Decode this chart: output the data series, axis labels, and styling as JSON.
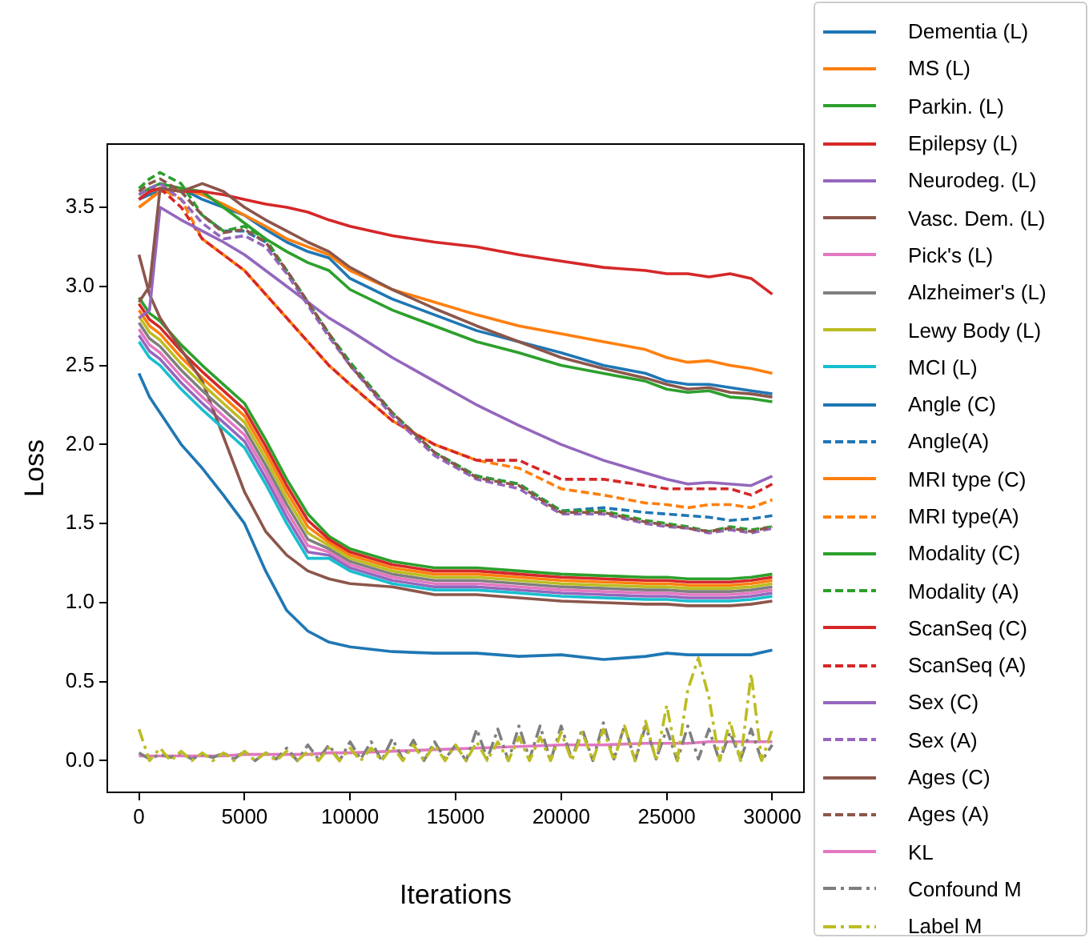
{
  "chart_data": {
    "type": "line",
    "xlabel": "Iterations",
    "ylabel": "Loss",
    "legend": "right",
    "grid": false,
    "xlim": [
      -1500,
      31500
    ],
    "ylim": [
      -0.2,
      3.9
    ],
    "xticks": [
      0,
      5000,
      10000,
      15000,
      20000,
      25000,
      30000
    ],
    "yticks": [
      {
        "value": 0,
        "label": "0.0"
      },
      {
        "value": 0.5,
        "label": "0.5"
      },
      {
        "value": 1,
        "label": "1.0"
      },
      {
        "value": 1.5,
        "label": "1.5"
      },
      {
        "value": 2,
        "label": "2.0"
      },
      {
        "value": 2.5,
        "label": "2.5"
      },
      {
        "value": 3,
        "label": "3.0"
      },
      {
        "value": 3.5,
        "label": "3.5"
      }
    ],
    "x": [
      0,
      500,
      1000,
      2000,
      3000,
      4000,
      5000,
      6000,
      7000,
      8000,
      9000,
      10000,
      12000,
      14000,
      16000,
      18000,
      20000,
      22000,
      24000,
      25000,
      26000,
      27000,
      28000,
      29000,
      30000
    ],
    "series": [
      {
        "name": "Dementia (L)",
        "color": "#1f77b4",
        "line_style": "solid",
        "values": [
          2.45,
          2.3,
          2.2,
          2.0,
          1.85,
          1.68,
          1.5,
          1.2,
          0.95,
          0.82,
          0.75,
          0.72,
          0.69,
          0.68,
          0.68,
          0.66,
          0.67,
          0.64,
          0.66,
          0.68,
          0.67,
          0.67,
          0.67,
          0.67,
          0.7
        ]
      },
      {
        "name": "MS (L)",
        "color": "#ff7f0e",
        "line_style": "solid",
        "values": [
          2.85,
          2.75,
          2.7,
          2.55,
          2.42,
          2.3,
          2.18,
          1.95,
          1.7,
          1.48,
          1.38,
          1.3,
          1.22,
          1.18,
          1.18,
          1.16,
          1.14,
          1.13,
          1.12,
          1.12,
          1.11,
          1.11,
          1.11,
          1.12,
          1.14
        ]
      },
      {
        "name": "Parkin. (L)",
        "color": "#2ca02c",
        "line_style": "solid",
        "values": [
          2.93,
          2.83,
          2.78,
          2.63,
          2.5,
          2.38,
          2.26,
          2.03,
          1.78,
          1.56,
          1.42,
          1.34,
          1.26,
          1.22,
          1.22,
          1.2,
          1.18,
          1.17,
          1.16,
          1.16,
          1.15,
          1.15,
          1.15,
          1.16,
          1.18
        ]
      },
      {
        "name": "Epilepsy (L)",
        "color": "#d62728",
        "line_style": "solid",
        "values": [
          2.89,
          2.79,
          2.74,
          2.59,
          2.46,
          2.34,
          2.22,
          1.99,
          1.74,
          1.52,
          1.4,
          1.32,
          1.24,
          1.2,
          1.2,
          1.18,
          1.16,
          1.15,
          1.14,
          1.14,
          1.13,
          1.13,
          1.13,
          1.14,
          1.16
        ]
      },
      {
        "name": "Neurodeg. (L)",
        "color": "#9467bd",
        "line_style": "solid",
        "values": [
          2.69,
          2.59,
          2.54,
          2.39,
          2.26,
          2.14,
          2.02,
          1.79,
          1.54,
          1.32,
          1.3,
          1.22,
          1.14,
          1.1,
          1.1,
          1.08,
          1.06,
          1.05,
          1.04,
          1.04,
          1.03,
          1.03,
          1.03,
          1.04,
          1.06
        ]
      },
      {
        "name": "Vasc. Dem. (L)",
        "color": "#8c564b",
        "line_style": "solid",
        "values": [
          3.2,
          2.95,
          2.8,
          2.6,
          2.4,
          2.05,
          1.7,
          1.45,
          1.3,
          1.2,
          1.15,
          1.12,
          1.1,
          1.05,
          1.05,
          1.03,
          1.01,
          1.0,
          0.99,
          0.99,
          0.98,
          0.98,
          0.98,
          0.99,
          1.01
        ]
      },
      {
        "name": "Pick's (L)",
        "color": "#e377c2",
        "line_style": "solid",
        "values": [
          2.73,
          2.63,
          2.58,
          2.43,
          2.3,
          2.18,
          2.06,
          1.83,
          1.58,
          1.36,
          1.32,
          1.24,
          1.16,
          1.12,
          1.12,
          1.1,
          1.08,
          1.07,
          1.06,
          1.06,
          1.05,
          1.05,
          1.05,
          1.06,
          1.08
        ]
      },
      {
        "name": "Alzheimer's (L)",
        "color": "#7f7f7f",
        "line_style": "solid",
        "values": [
          2.77,
          2.67,
          2.62,
          2.47,
          2.34,
          2.22,
          2.1,
          1.87,
          1.62,
          1.4,
          1.34,
          1.26,
          1.18,
          1.14,
          1.14,
          1.12,
          1.1,
          1.09,
          1.08,
          1.08,
          1.07,
          1.07,
          1.07,
          1.08,
          1.1
        ]
      },
      {
        "name": "Lewy Body (L)",
        "color": "#bcbd22",
        "line_style": "solid",
        "values": [
          2.81,
          2.71,
          2.66,
          2.51,
          2.38,
          2.26,
          2.14,
          1.91,
          1.66,
          1.44,
          1.36,
          1.28,
          1.2,
          1.16,
          1.16,
          1.14,
          1.12,
          1.11,
          1.1,
          1.1,
          1.09,
          1.09,
          1.09,
          1.1,
          1.12
        ]
      },
      {
        "name": "MCI (L)",
        "color": "#17becf",
        "line_style": "solid",
        "values": [
          2.65,
          2.55,
          2.5,
          2.35,
          2.22,
          2.1,
          1.98,
          1.75,
          1.5,
          1.28,
          1.28,
          1.2,
          1.12,
          1.08,
          1.08,
          1.06,
          1.04,
          1.03,
          1.02,
          1.02,
          1.01,
          1.01,
          1.01,
          1.02,
          1.04
        ]
      },
      {
        "name": "Angle (C)",
        "color": "#1f77b4",
        "line_style": "solid",
        "values": [
          3.55,
          3.58,
          3.6,
          3.62,
          3.55,
          3.5,
          3.45,
          3.36,
          3.28,
          3.22,
          3.18,
          3.05,
          2.92,
          2.82,
          2.72,
          2.65,
          2.58,
          2.5,
          2.45,
          2.4,
          2.38,
          2.38,
          2.36,
          2.34,
          2.32
        ]
      },
      {
        "name": "Angle(A)",
        "color": "#1f77b4",
        "line_style": "dashed",
        "values": [
          3.55,
          3.6,
          3.65,
          3.6,
          3.45,
          3.35,
          3.35,
          3.28,
          3.1,
          2.9,
          2.7,
          2.52,
          2.2,
          1.95,
          1.8,
          1.75,
          1.58,
          1.6,
          1.57,
          1.56,
          1.55,
          1.54,
          1.52,
          1.53,
          1.55
        ]
      },
      {
        "name": "MRI type (C)",
        "color": "#ff7f0e",
        "line_style": "solid",
        "values": [
          3.5,
          3.55,
          3.6,
          3.62,
          3.58,
          3.52,
          3.45,
          3.38,
          3.3,
          3.25,
          3.2,
          3.1,
          2.98,
          2.9,
          2.82,
          2.75,
          2.7,
          2.65,
          2.6,
          2.55,
          2.52,
          2.53,
          2.5,
          2.48,
          2.45
        ]
      },
      {
        "name": "MRI type(A)",
        "color": "#ff7f0e",
        "line_style": "dashed",
        "values": [
          3.5,
          3.55,
          3.62,
          3.55,
          3.3,
          3.2,
          3.1,
          2.95,
          2.8,
          2.65,
          2.5,
          2.38,
          2.15,
          2.0,
          1.9,
          1.85,
          1.72,
          1.68,
          1.63,
          1.62,
          1.6,
          1.62,
          1.62,
          1.6,
          1.65
        ]
      },
      {
        "name": "Modality (C)",
        "color": "#2ca02c",
        "line_style": "solid",
        "values": [
          3.58,
          3.62,
          3.65,
          3.62,
          3.6,
          3.5,
          3.4,
          3.3,
          3.22,
          3.15,
          3.1,
          2.98,
          2.85,
          2.75,
          2.65,
          2.58,
          2.5,
          2.45,
          2.4,
          2.35,
          2.33,
          2.34,
          2.3,
          2.29,
          2.27
        ]
      },
      {
        "name": "Modality (A)",
        "color": "#2ca02c",
        "line_style": "dashed",
        "values": [
          3.62,
          3.68,
          3.72,
          3.65,
          3.45,
          3.35,
          3.38,
          3.3,
          3.1,
          2.9,
          2.7,
          2.52,
          2.2,
          1.95,
          1.8,
          1.75,
          1.58,
          1.58,
          1.52,
          1.5,
          1.48,
          1.45,
          1.48,
          1.46,
          1.48
        ]
      },
      {
        "name": "ScanSeq (C)",
        "color": "#d62728",
        "line_style": "solid",
        "values": [
          3.55,
          3.6,
          3.62,
          3.6,
          3.6,
          3.58,
          3.55,
          3.52,
          3.5,
          3.47,
          3.42,
          3.38,
          3.32,
          3.28,
          3.25,
          3.2,
          3.16,
          3.12,
          3.1,
          3.08,
          3.08,
          3.06,
          3.08,
          3.05,
          2.95
        ]
      },
      {
        "name": "ScanSeq (A)",
        "color": "#d62728",
        "line_style": "dashed",
        "values": [
          3.55,
          3.6,
          3.62,
          3.5,
          3.3,
          3.2,
          3.1,
          2.95,
          2.8,
          2.65,
          2.5,
          2.38,
          2.15,
          2.0,
          1.9,
          1.9,
          1.78,
          1.78,
          1.74,
          1.72,
          1.72,
          1.72,
          1.72,
          1.68,
          1.75
        ]
      },
      {
        "name": "Sex (C)",
        "color": "#9467bd",
        "line_style": "solid",
        "values": [
          2.8,
          2.85,
          3.5,
          3.42,
          3.35,
          3.28,
          3.2,
          3.1,
          3.0,
          2.9,
          2.8,
          2.72,
          2.55,
          2.4,
          2.25,
          2.12,
          2.0,
          1.9,
          1.82,
          1.78,
          1.75,
          1.76,
          1.75,
          1.74,
          1.8
        ]
      },
      {
        "name": "Sex (A)",
        "color": "#9467bd",
        "line_style": "dashed",
        "values": [
          3.58,
          3.62,
          3.65,
          3.55,
          3.4,
          3.3,
          3.32,
          3.25,
          3.08,
          2.88,
          2.68,
          2.5,
          2.18,
          1.93,
          1.78,
          1.72,
          1.56,
          1.56,
          1.5,
          1.48,
          1.47,
          1.44,
          1.46,
          1.44,
          1.47
        ]
      },
      {
        "name": "Ages (C)",
        "color": "#8c564b",
        "line_style": "solid",
        "values": [
          2.9,
          3.0,
          3.62,
          3.6,
          3.65,
          3.6,
          3.5,
          3.42,
          3.35,
          3.28,
          3.22,
          3.12,
          2.98,
          2.86,
          2.75,
          2.65,
          2.55,
          2.48,
          2.42,
          2.38,
          2.35,
          2.36,
          2.33,
          2.32,
          2.3
        ]
      },
      {
        "name": "Ages (A)",
        "color": "#8c564b",
        "line_style": "dashed",
        "values": [
          3.6,
          3.65,
          3.68,
          3.6,
          3.45,
          3.34,
          3.36,
          3.28,
          3.1,
          2.9,
          2.7,
          2.5,
          2.2,
          1.95,
          1.79,
          1.74,
          1.57,
          1.57,
          1.51,
          1.49,
          1.47,
          1.45,
          1.47,
          1.45,
          1.48
        ]
      },
      {
        "name": "KL",
        "color": "#e377c2",
        "line_style": "solid",
        "values": [
          0.03,
          0.03,
          0.03,
          0.03,
          0.03,
          0.03,
          0.04,
          0.04,
          0.04,
          0.04,
          0.05,
          0.05,
          0.06,
          0.07,
          0.08,
          0.09,
          0.1,
          0.1,
          0.11,
          0.11,
          0.11,
          0.12,
          0.12,
          0.12,
          0.12
        ]
      },
      {
        "name": "Confound M",
        "color": "#7f7f7f",
        "line_style": "dashdot",
        "x": [
          0,
          500,
          1000,
          1500,
          2000,
          2500,
          3000,
          3500,
          4000,
          4500,
          5000,
          5500,
          6000,
          6500,
          7000,
          7500,
          8000,
          8500,
          9000,
          9500,
          10000,
          10500,
          11000,
          11500,
          12000,
          12500,
          13000,
          13500,
          14000,
          14500,
          15000,
          15500,
          16000,
          16500,
          17000,
          17500,
          18000,
          18500,
          19000,
          19500,
          20000,
          20500,
          21000,
          21500,
          22000,
          22500,
          23000,
          23500,
          24000,
          24500,
          25000,
          25500,
          26000,
          26500,
          27000,
          27500,
          28000,
          28500,
          29000,
          29500,
          30000
        ],
        "values": [
          0.05,
          0.01,
          0.04,
          0.02,
          0.05,
          0.01,
          0.04,
          0.02,
          0.05,
          0.01,
          0.06,
          0.0,
          0.05,
          0.01,
          0.08,
          0.0,
          0.1,
          0.01,
          0.1,
          0.0,
          0.12,
          0.01,
          0.12,
          0.0,
          0.14,
          0.01,
          0.13,
          0.0,
          0.12,
          0.01,
          0.1,
          0.0,
          0.2,
          0.01,
          0.2,
          0.0,
          0.22,
          0.01,
          0.22,
          0.0,
          0.22,
          0.01,
          0.2,
          0.0,
          0.24,
          0.01,
          0.22,
          0.0,
          0.22,
          0.01,
          0.2,
          0.0,
          0.22,
          0.01,
          0.2,
          0.0,
          0.18,
          0.01,
          0.2,
          0.0,
          0.1
        ]
      },
      {
        "name": "Label M",
        "color": "#bcbd22",
        "line_style": "dashdot",
        "x": [
          0,
          500,
          1000,
          1500,
          2000,
          2500,
          3000,
          3500,
          4000,
          4500,
          5000,
          5500,
          6000,
          6500,
          7000,
          7500,
          8000,
          8500,
          9000,
          9500,
          10000,
          10500,
          11000,
          11500,
          12000,
          12500,
          13000,
          13500,
          14000,
          14500,
          15000,
          15500,
          16000,
          16500,
          17000,
          17500,
          18000,
          18500,
          19000,
          19500,
          20000,
          20500,
          21000,
          21500,
          22000,
          22500,
          23000,
          23500,
          24000,
          24500,
          25000,
          25500,
          26000,
          26500,
          27000,
          27500,
          28000,
          28500,
          29000,
          29500,
          30000
        ],
        "values": [
          0.2,
          0.0,
          0.08,
          0.0,
          0.06,
          0.0,
          0.05,
          0.0,
          0.05,
          0.0,
          0.06,
          0.0,
          0.05,
          0.0,
          0.06,
          0.0,
          0.06,
          0.0,
          0.08,
          0.0,
          0.08,
          0.0,
          0.08,
          0.0,
          0.09,
          0.0,
          0.1,
          0.0,
          0.1,
          0.0,
          0.1,
          0.0,
          0.12,
          0.0,
          0.12,
          0.0,
          0.15,
          0.0,
          0.15,
          0.0,
          0.18,
          0.0,
          0.18,
          0.0,
          0.2,
          0.0,
          0.22,
          0.0,
          0.25,
          0.0,
          0.35,
          0.0,
          0.45,
          0.65,
          0.4,
          0.0,
          0.25,
          0.0,
          0.55,
          0.0,
          0.2
        ]
      }
    ]
  }
}
